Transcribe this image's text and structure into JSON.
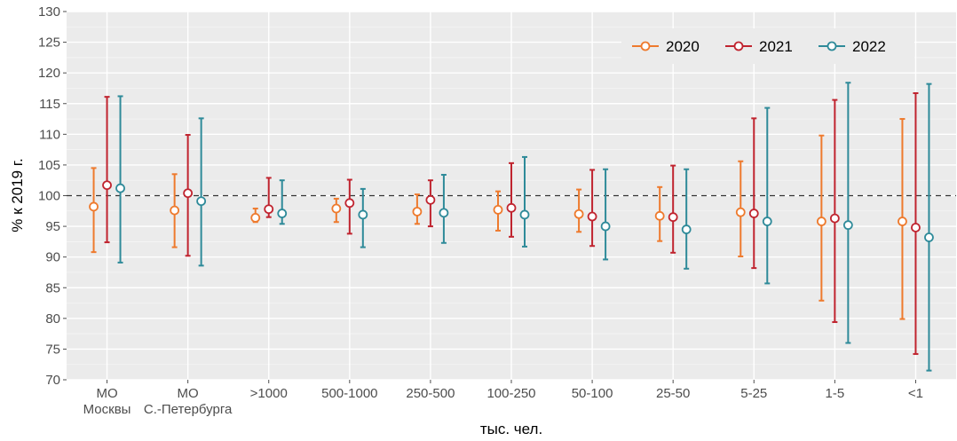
{
  "chart_data": {
    "type": "errorbar",
    "xlabel": "тыс. чел.",
    "ylabel": "% к 2019 г.",
    "ylim": [
      70,
      130
    ],
    "yticks": [
      70,
      75,
      80,
      85,
      90,
      95,
      100,
      105,
      110,
      115,
      120,
      125,
      130
    ],
    "reference_line": 100,
    "grid": true,
    "legend_position": "top-right",
    "categories": [
      "МО\nМосквы",
      "МО\nС.-Петербурга",
      ">1000",
      "500-1000",
      "250-500",
      "100-250",
      "50-100",
      "25-50",
      "5-25",
      "1-5",
      "<1"
    ],
    "series": [
      {
        "name": "2020",
        "color": "#EE7A2D",
        "points": [
          {
            "y": 98.2,
            "low": 90.8,
            "high": 104.5
          },
          {
            "y": 97.6,
            "low": 91.6,
            "high": 103.5
          },
          {
            "y": 96.4,
            "low": 95.7,
            "high": 97.9
          },
          {
            "y": 97.9,
            "low": 95.7,
            "high": 99.5
          },
          {
            "y": 97.4,
            "low": 95.4,
            "high": 100.2
          },
          {
            "y": 97.7,
            "low": 94.3,
            "high": 100.7
          },
          {
            "y": 97.0,
            "low": 94.1,
            "high": 101.0
          },
          {
            "y": 96.7,
            "low": 92.6,
            "high": 101.4
          },
          {
            "y": 97.3,
            "low": 90.1,
            "high": 105.6
          },
          {
            "y": 95.8,
            "low": 82.9,
            "high": 109.8
          },
          {
            "y": 95.8,
            "low": 79.9,
            "high": 112.5
          }
        ]
      },
      {
        "name": "2021",
        "color": "#C0242F",
        "points": [
          {
            "y": 101.7,
            "low": 92.4,
            "high": 116.1
          },
          {
            "y": 100.4,
            "low": 90.2,
            "high": 109.9
          },
          {
            "y": 97.8,
            "low": 96.5,
            "high": 102.9
          },
          {
            "y": 98.8,
            "low": 93.8,
            "high": 102.6
          },
          {
            "y": 99.3,
            "low": 95.0,
            "high": 102.5
          },
          {
            "y": 98.0,
            "low": 93.3,
            "high": 105.3
          },
          {
            "y": 96.6,
            "low": 91.8,
            "high": 104.2
          },
          {
            "y": 96.5,
            "low": 90.7,
            "high": 104.9
          },
          {
            "y": 97.1,
            "low": 88.2,
            "high": 112.6
          },
          {
            "y": 96.3,
            "low": 79.4,
            "high": 115.6
          },
          {
            "y": 94.8,
            "low": 74.2,
            "high": 116.7
          }
        ]
      },
      {
        "name": "2022",
        "color": "#2E8A99",
        "points": [
          {
            "y": 101.2,
            "low": 89.1,
            "high": 116.2
          },
          {
            "y": 99.1,
            "low": 88.6,
            "high": 112.6
          },
          {
            "y": 97.1,
            "low": 95.4,
            "high": 102.5
          },
          {
            "y": 96.9,
            "low": 91.6,
            "high": 101.1
          },
          {
            "y": 97.2,
            "low": 92.3,
            "high": 103.4
          },
          {
            "y": 96.9,
            "low": 91.7,
            "high": 106.3
          },
          {
            "y": 95.0,
            "low": 89.6,
            "high": 104.3
          },
          {
            "y": 94.5,
            "low": 88.1,
            "high": 104.3
          },
          {
            "y": 95.8,
            "low": 85.7,
            "high": 114.3
          },
          {
            "y": 95.2,
            "low": 76.0,
            "high": 118.4
          },
          {
            "y": 93.2,
            "low": 71.5,
            "high": 118.2
          }
        ]
      }
    ]
  }
}
